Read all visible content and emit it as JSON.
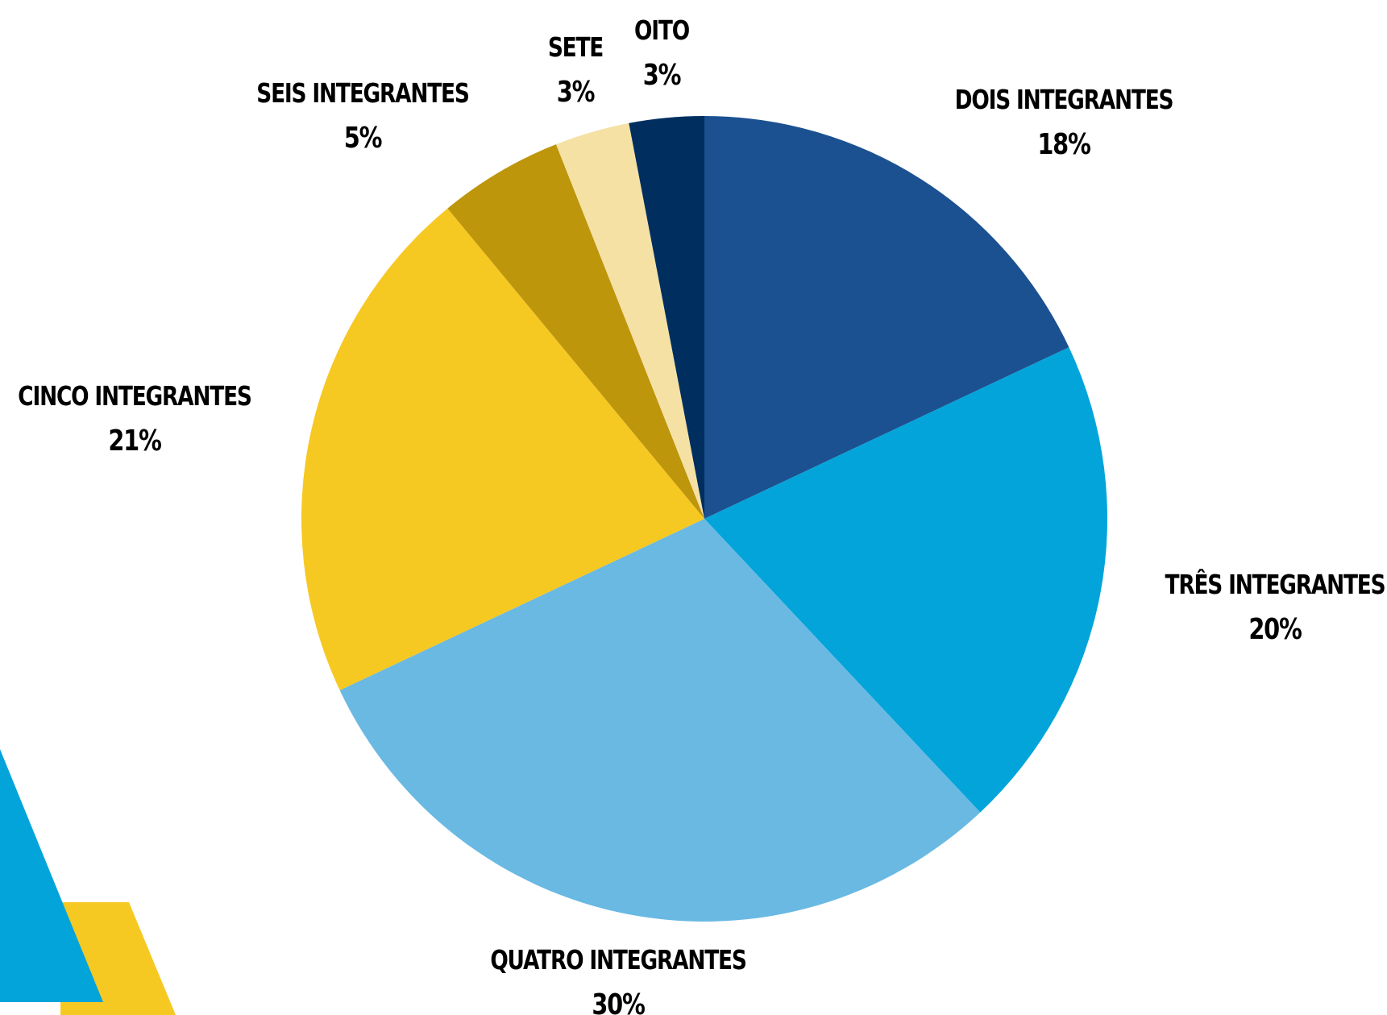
{
  "chart_data": {
    "type": "pie",
    "title": "",
    "slices": [
      {
        "label": "DOIS INTEGRANTES",
        "value": 18,
        "value_label": "18%",
        "color": "#1B5190"
      },
      {
        "label": "TRÊS INTEGRANTES",
        "value": 20,
        "value_label": "20%",
        "color": "#03A4DA"
      },
      {
        "label": "QUATRO INTEGRANTES",
        "value": 30,
        "value_label": "30%",
        "color": "#69B9E2"
      },
      {
        "label": "CINCO INTEGRANTES",
        "value": 21,
        "value_label": "21%",
        "color": "#F6C822"
      },
      {
        "label": "SEIS INTEGRANTES",
        "value": 5,
        "value_label": "5%",
        "color": "#BE960C"
      },
      {
        "label": "SETE",
        "value": 3,
        "value_label": "3%",
        "color": "#F5E1A4"
      },
      {
        "label": "OITO",
        "value": 3,
        "value_label": "3%",
        "color": "#002F5F"
      }
    ],
    "start_angle": "12 o'clock",
    "direction": "clockwise",
    "legend": "none"
  },
  "decor": {
    "triangle_color": "#03A4DA",
    "parallelogram_color": "#F6C822"
  }
}
